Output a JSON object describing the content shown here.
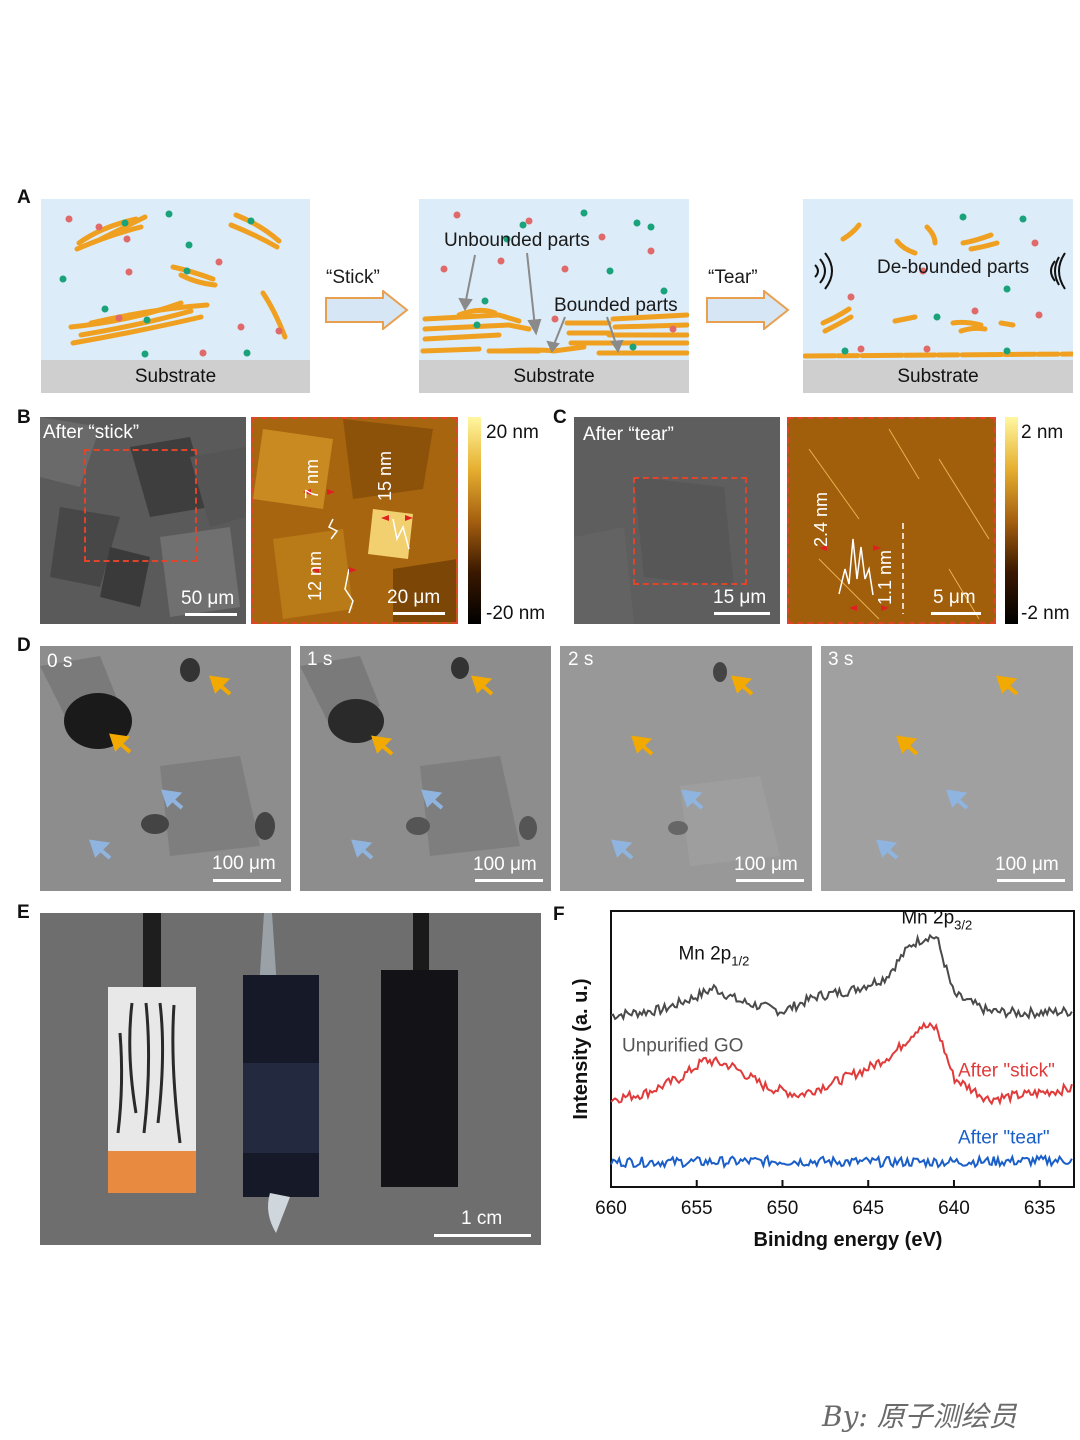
{
  "panel_labels": {
    "a": "A",
    "b": "B",
    "c": "C",
    "d": "D",
    "e": "E",
    "f": "F"
  },
  "panel_a": {
    "substrate": "Substrate",
    "step1": "“Stick”",
    "step2": "“Tear”",
    "unbounded": "Unbounded parts",
    "bounded": "Bounded parts",
    "debounded": "De-bounded parts",
    "colors": {
      "sheet": "#f0a020",
      "impurity_red": "#e06a6a",
      "impurity_green": "#1aa37a",
      "background": "#dcecf8"
    }
  },
  "panel_b": {
    "sem_label": "After “stick”",
    "sem_scale": "50 μm",
    "afm_heights": [
      "7 nm",
      "15 nm",
      "12 nm"
    ],
    "afm_scale": "20 μm",
    "colorbar_max": "20 nm",
    "colorbar_min": "-20 nm"
  },
  "panel_c": {
    "sem_label": "After “tear”",
    "sem_scale": "15 μm",
    "afm_heights": [
      "2.4 nm",
      "1.1 nm"
    ],
    "afm_scale": "5 μm",
    "colorbar_max": "2 nm",
    "colorbar_min": "-2 nm"
  },
  "panel_d": {
    "frames": [
      {
        "time": "0 s",
        "scale": "100 μm"
      },
      {
        "time": "1 s",
        "scale": "100 μm"
      },
      {
        "time": "2 s",
        "scale": "100 μm"
      },
      {
        "time": "3 s",
        "scale": "100 μm"
      }
    ]
  },
  "panel_e": {
    "scale": "1 cm"
  },
  "chart_data": {
    "type": "line",
    "title": "",
    "xlabel": "Binidng energy (eV)",
    "ylabel": "Intensity (a. u.)",
    "xlim": [
      660,
      633
    ],
    "x_ticks": [
      660,
      655,
      650,
      645,
      640,
      635
    ],
    "y_ticks": [],
    "peak_labels": [
      {
        "base": "Mn 2p",
        "sub": "1/2",
        "energy": 654
      },
      {
        "base": "Mn 2p",
        "sub": "3/2",
        "energy": 641
      }
    ],
    "series": [
      {
        "name": "Unpurified GO",
        "color": "#4a4a4a",
        "offset": 2.0,
        "points": [
          [
            660,
            0.05
          ],
          [
            657,
            0.12
          ],
          [
            655,
            0.28
          ],
          [
            654,
            0.38
          ],
          [
            652.5,
            0.22
          ],
          [
            650,
            0.1
          ],
          [
            648,
            0.28
          ],
          [
            646,
            0.35
          ],
          [
            644,
            0.5
          ],
          [
            642.5,
            0.9
          ],
          [
            641.5,
            1.0
          ],
          [
            641,
            0.98
          ],
          [
            640,
            0.3
          ],
          [
            638,
            0.1
          ],
          [
            636,
            0.08
          ],
          [
            633,
            0.1
          ]
        ]
      },
      {
        "name": "After \"stick\"",
        "color": "#e03a3a",
        "offset": 1.0,
        "points": [
          [
            660,
            0.05
          ],
          [
            658,
            0.12
          ],
          [
            656,
            0.3
          ],
          [
            654.5,
            0.52
          ],
          [
            653,
            0.45
          ],
          [
            651,
            0.2
          ],
          [
            649,
            0.1
          ],
          [
            647,
            0.25
          ],
          [
            645,
            0.42
          ],
          [
            643.5,
            0.6
          ],
          [
            642,
            0.92
          ],
          [
            641,
            0.9
          ],
          [
            640,
            0.3
          ],
          [
            638,
            0.05
          ],
          [
            636,
            0.1
          ],
          [
            633,
            0.18
          ]
        ]
      },
      {
        "name": "After \"tear\"",
        "color": "#1a5ec8",
        "offset": 0.2,
        "points": [
          [
            660,
            0.1
          ],
          [
            655,
            0.1
          ],
          [
            650,
            0.11
          ],
          [
            645,
            0.1
          ],
          [
            640,
            0.1
          ],
          [
            633,
            0.12
          ]
        ]
      }
    ]
  },
  "watermark": "By: 原子测绘员"
}
